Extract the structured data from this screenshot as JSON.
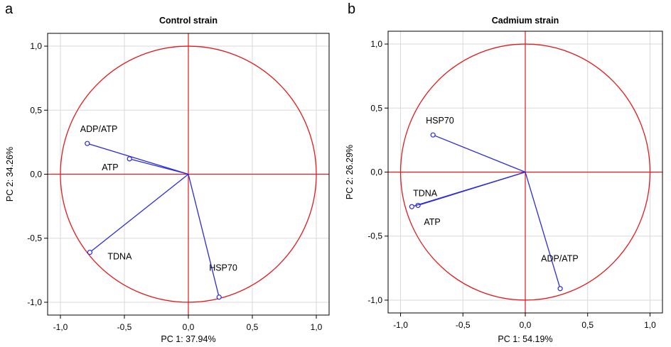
{
  "chart_data": [
    {
      "panel_label": "a",
      "type": "scatter",
      "title": "Control strain",
      "xlabel": "PC 1: 37.94%",
      "ylabel": "PC 2: 34.26%",
      "xlim": [
        -1.1,
        1.1
      ],
      "ylim": [
        -1.1,
        1.1
      ],
      "x_ticks": [
        -1.0,
        -0.5,
        0.0,
        0.5,
        1.0
      ],
      "y_ticks": [
        -1.0,
        -0.5,
        0.0,
        0.5,
        1.0
      ],
      "x_tick_labels": [
        "-1,0",
        "-0,5",
        "0,0",
        "0,5",
        "1,0"
      ],
      "y_tick_labels": [
        "-1,0",
        "-0,5",
        "0,0",
        "0,5",
        "1,0"
      ],
      "grid": true,
      "unit_circle": true,
      "points": [
        {
          "label": "ADP/ATP",
          "x": -0.79,
          "y": 0.24
        },
        {
          "label": "ATP",
          "x": -0.46,
          "y": 0.12
        },
        {
          "label": "TDNA",
          "x": -0.77,
          "y": -0.61
        },
        {
          "label": "HSP70",
          "x": 0.24,
          "y": -0.96
        }
      ]
    },
    {
      "panel_label": "b",
      "type": "scatter",
      "title": "Cadmium strain",
      "xlabel": "PC 1: 54.19%",
      "ylabel": "PC 2: 26.29%",
      "xlim": [
        -1.1,
        1.1
      ],
      "ylim": [
        -1.1,
        1.1
      ],
      "x_ticks": [
        -1.0,
        -0.5,
        0.0,
        0.5,
        1.0
      ],
      "y_ticks": [
        -1.0,
        -0.5,
        0.0,
        0.5,
        1.0
      ],
      "x_tick_labels": [
        "-1,0",
        "-0,5",
        "0,0",
        "0,5",
        "1,0"
      ],
      "y_tick_labels": [
        "-1,0",
        "-0,5",
        "0,0",
        "0,5",
        "1,0"
      ],
      "grid": true,
      "unit_circle": true,
      "points": [
        {
          "label": "HSP70",
          "x": -0.74,
          "y": 0.29
        },
        {
          "label": "TDNA",
          "x": -0.86,
          "y": -0.26
        },
        {
          "label": "ATP",
          "x": -0.91,
          "y": -0.27
        },
        {
          "label": "ADP/ATP",
          "x": 0.28,
          "y": -0.91
        }
      ]
    }
  ],
  "colors": {
    "circle_and_axes": "#e31a1c",
    "vectors": "#2a2ae0",
    "grid": "#d9d9d9",
    "frame": "#000000"
  }
}
